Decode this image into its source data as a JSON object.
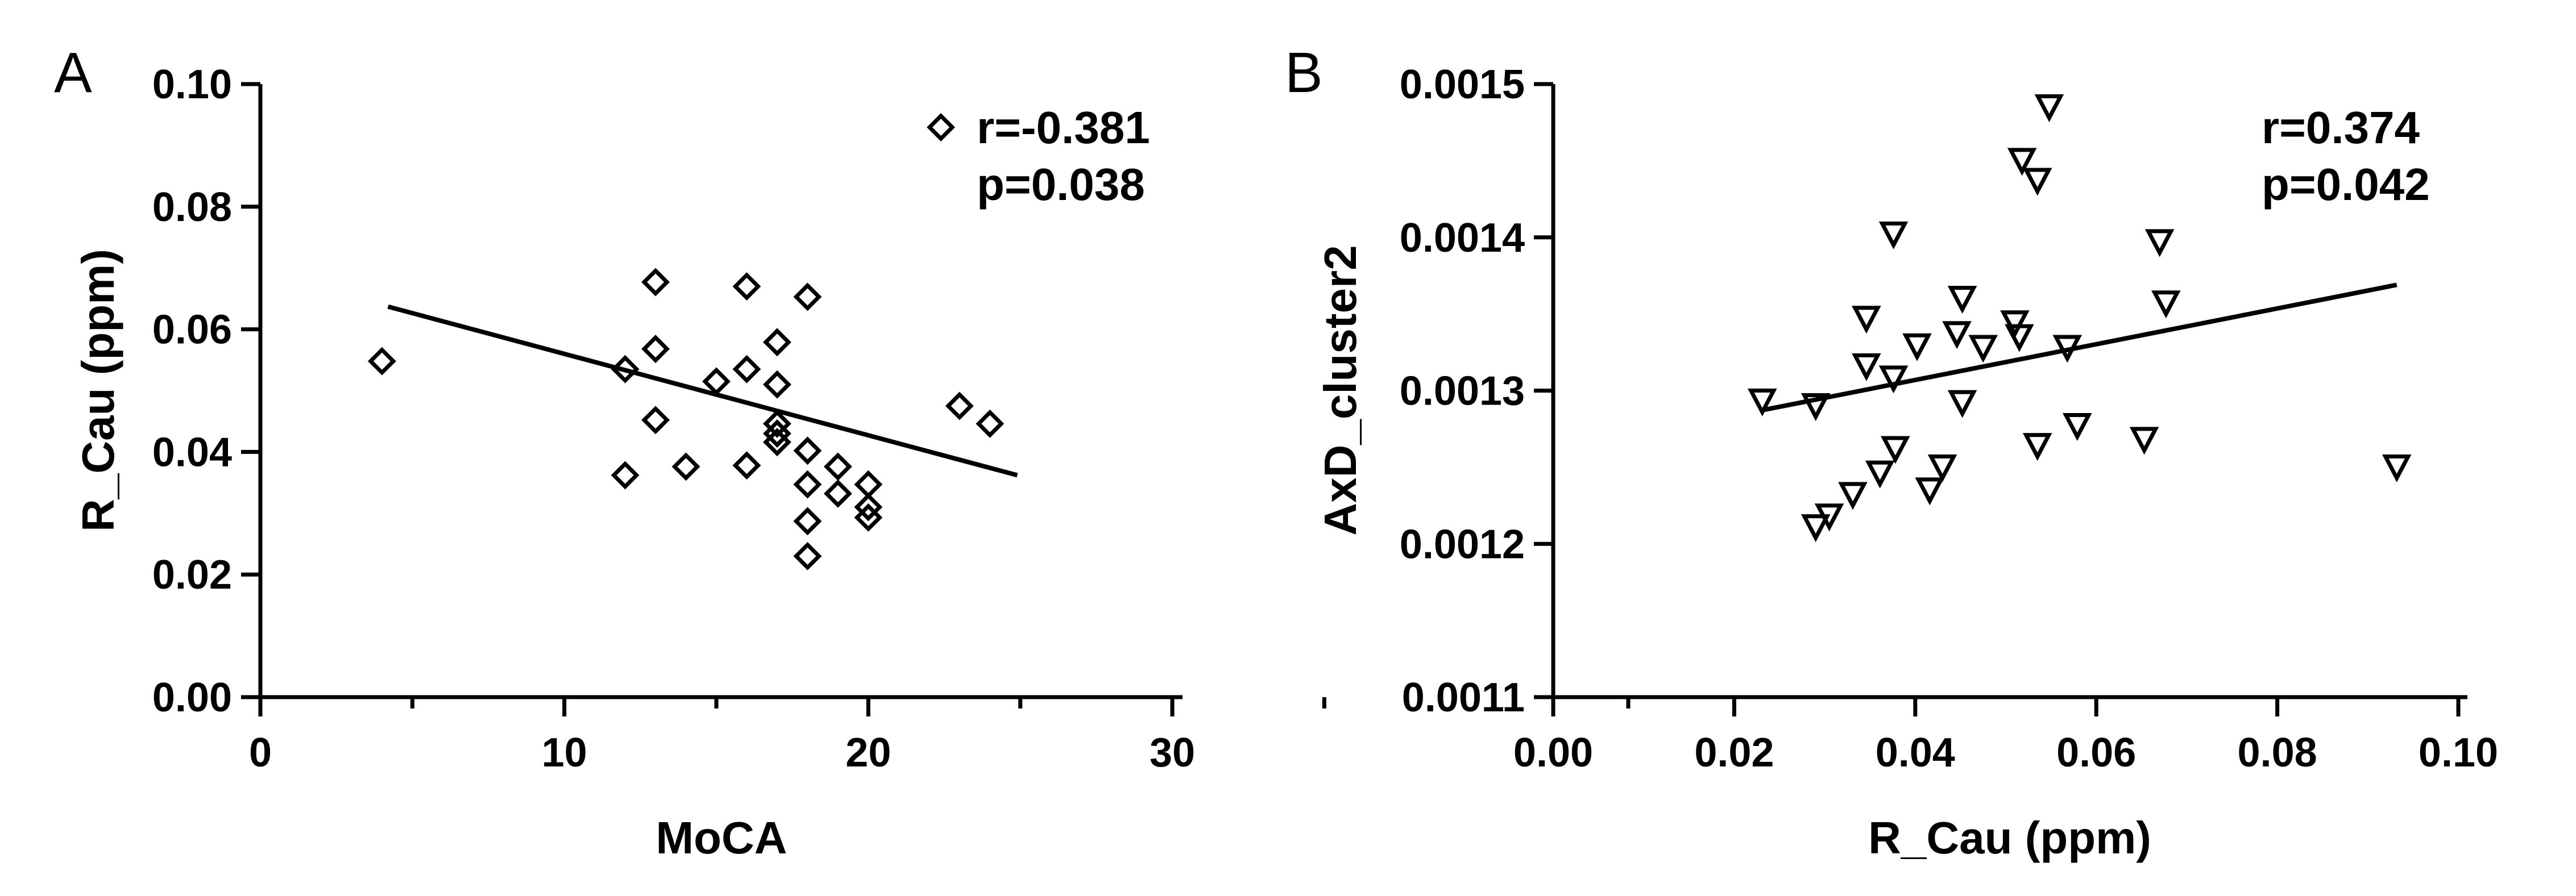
{
  "chart_data": [
    {
      "panel": "A",
      "type": "scatter",
      "marker": "diamond",
      "title": "",
      "xlabel": "MoCA",
      "ylabel": "R_Cau (ppm)",
      "xlim": [
        0,
        30
      ],
      "ylim": [
        0.0,
        0.1
      ],
      "x_ticks": [
        "0",
        "10",
        "20",
        "30"
      ],
      "y_ticks": [
        "0.00",
        "0.02",
        "0.04",
        "0.06",
        "0.08",
        "0.10"
      ],
      "legend_position": "top-right",
      "stats": [
        "r=-0.381",
        "p=0.038"
      ],
      "grid": false,
      "regression": {
        "x": [
          4.2,
          24.9
        ],
        "y": [
          0.0637,
          0.0362
        ]
      },
      "points": [
        {
          "x": 4,
          "y": 0.0548
        },
        {
          "x": 12,
          "y": 0.0535
        },
        {
          "x": 12,
          "y": 0.0362
        },
        {
          "x": 13,
          "y": 0.0677
        },
        {
          "x": 13,
          "y": 0.0568
        },
        {
          "x": 13,
          "y": 0.0452
        },
        {
          "x": 14,
          "y": 0.0376
        },
        {
          "x": 15,
          "y": 0.0515
        },
        {
          "x": 16,
          "y": 0.067
        },
        {
          "x": 16,
          "y": 0.0535
        },
        {
          "x": 16,
          "y": 0.0378
        },
        {
          "x": 17,
          "y": 0.0579
        },
        {
          "x": 17,
          "y": 0.051
        },
        {
          "x": 17,
          "y": 0.0446
        },
        {
          "x": 17,
          "y": 0.043
        },
        {
          "x": 17,
          "y": 0.0416
        },
        {
          "x": 18,
          "y": 0.0653
        },
        {
          "x": 18,
          "y": 0.0402
        },
        {
          "x": 18,
          "y": 0.0347
        },
        {
          "x": 18,
          "y": 0.0287
        },
        {
          "x": 18,
          "y": 0.023
        },
        {
          "x": 19,
          "y": 0.0376
        },
        {
          "x": 19,
          "y": 0.0332
        },
        {
          "x": 20,
          "y": 0.0347
        },
        {
          "x": 20,
          "y": 0.031
        },
        {
          "x": 20,
          "y": 0.0293
        },
        {
          "x": 23,
          "y": 0.0475
        },
        {
          "x": 24,
          "y": 0.0446
        }
      ]
    },
    {
      "panel": "B",
      "type": "scatter",
      "marker": "triangle-down",
      "title": "",
      "xlabel": "R_Cau (ppm)",
      "ylabel": "AxD_cluster2",
      "xlim": [
        0.0,
        0.1
      ],
      "ylim": [
        0.0011,
        0.0015
      ],
      "x_ticks": [
        "0.00",
        "0.02",
        "0.04",
        "0.06",
        "0.08",
        "0.10"
      ],
      "y_ticks": [
        "0.0011",
        "0.0012",
        "0.0013",
        "0.0014",
        "0.0015"
      ],
      "legend_position": "top-right",
      "stats": [
        "r=0.374",
        "p=0.042"
      ],
      "grid": false,
      "regression": {
        "x": [
          0.0229,
          0.0932
        ],
        "y": [
          0.001287,
          0.001369
        ]
      },
      "points": [
        {
          "x": 0.0231,
          "y": 0.001293
        },
        {
          "x": 0.029,
          "y": 0.00129
        },
        {
          "x": 0.029,
          "y": 0.001211
        },
        {
          "x": 0.0305,
          "y": 0.001218
        },
        {
          "x": 0.0331,
          "y": 0.001232
        },
        {
          "x": 0.0346,
          "y": 0.001347
        },
        {
          "x": 0.0346,
          "y": 0.001316
        },
        {
          "x": 0.0361,
          "y": 0.001246
        },
        {
          "x": 0.0376,
          "y": 0.001402
        },
        {
          "x": 0.0376,
          "y": 0.001308
        },
        {
          "x": 0.0378,
          "y": 0.001262
        },
        {
          "x": 0.0402,
          "y": 0.001329
        },
        {
          "x": 0.0416,
          "y": 0.001235
        },
        {
          "x": 0.043,
          "y": 0.00125
        },
        {
          "x": 0.0446,
          "y": 0.001337
        },
        {
          "x": 0.0452,
          "y": 0.00136
        },
        {
          "x": 0.0452,
          "y": 0.001292
        },
        {
          "x": 0.0475,
          "y": 0.001328
        },
        {
          "x": 0.051,
          "y": 0.001344
        },
        {
          "x": 0.0515,
          "y": 0.001335
        },
        {
          "x": 0.0518,
          "y": 0.00145
        },
        {
          "x": 0.0535,
          "y": 0.001437
        },
        {
          "x": 0.0535,
          "y": 0.001264
        },
        {
          "x": 0.0548,
          "y": 0.001485
        },
        {
          "x": 0.0568,
          "y": 0.001328
        },
        {
          "x": 0.0579,
          "y": 0.001277
        },
        {
          "x": 0.0653,
          "y": 0.001268
        },
        {
          "x": 0.067,
          "y": 0.001397
        },
        {
          "x": 0.0677,
          "y": 0.001357
        },
        {
          "x": 0.0932,
          "y": 0.00125
        }
      ]
    }
  ]
}
